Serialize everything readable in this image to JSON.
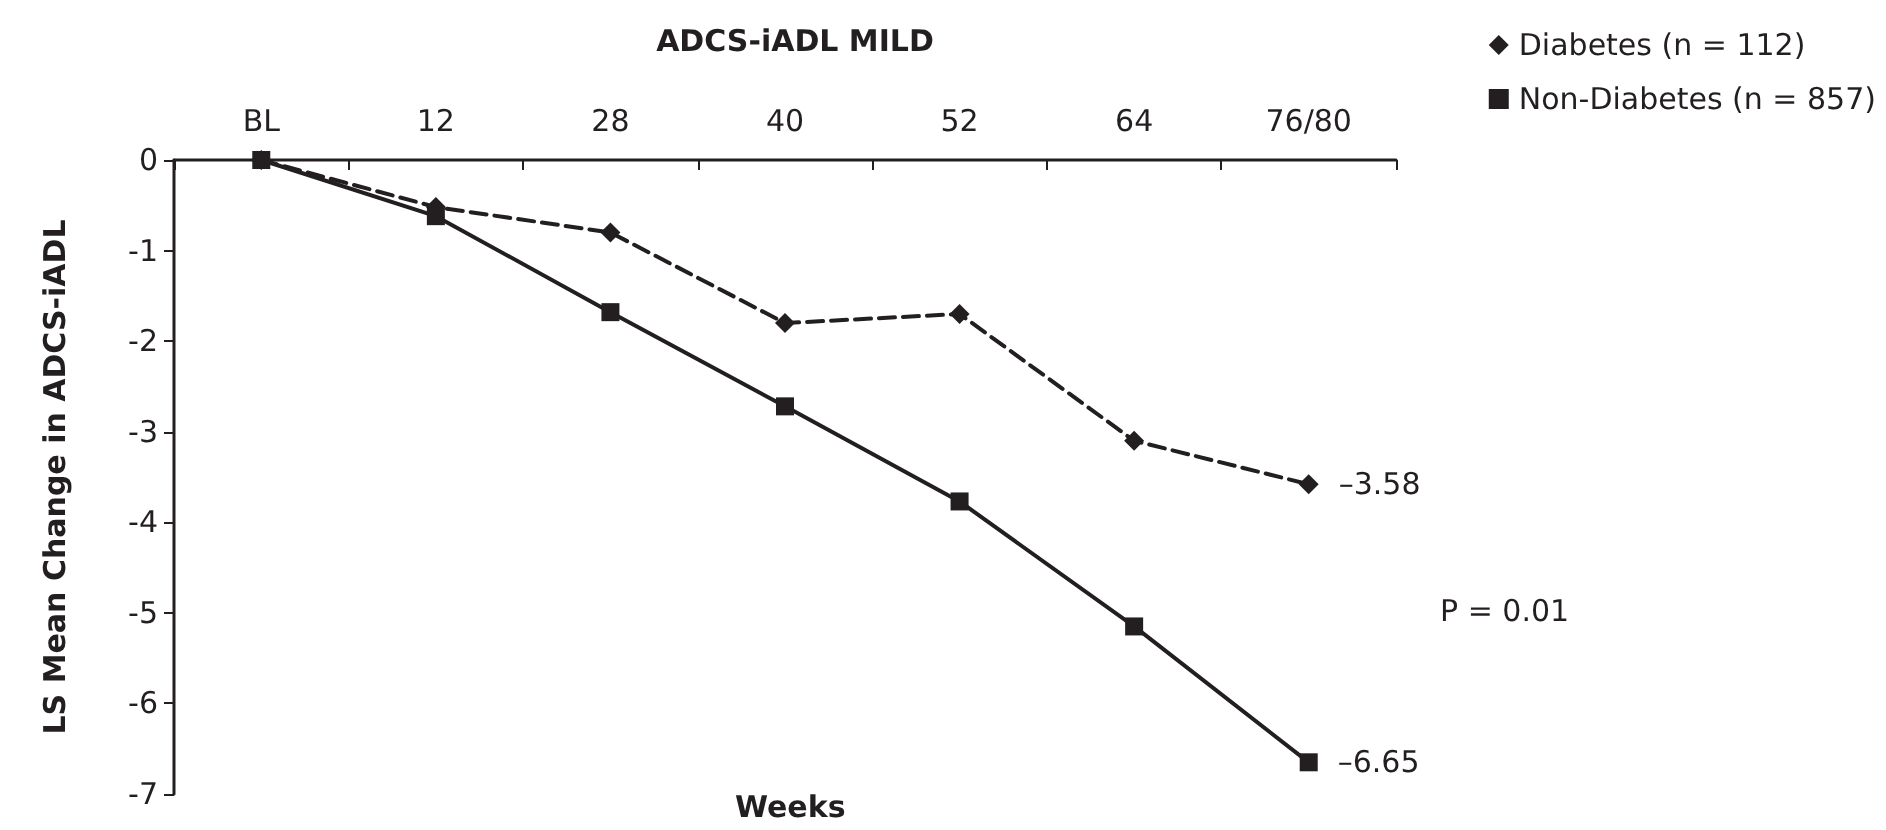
{
  "chart_data": {
    "type": "line",
    "title": "ADCS-iADL MILD",
    "xlabel": "Weeks",
    "ylabel": "LS Mean Change in ADCS-iADL",
    "categories": [
      "BL",
      "12",
      "28",
      "40",
      "52",
      "64",
      "76/80"
    ],
    "series": [
      {
        "name": "Diabetes (n = 112)",
        "color": "#231f20",
        "marker": "diamond",
        "line_style": "dashed",
        "values": [
          0,
          -0.52,
          -0.8,
          -1.8,
          -1.7,
          -3.1,
          -3.58
        ],
        "value_labels": [
          null,
          null,
          null,
          null,
          null,
          null,
          "–3.58"
        ]
      },
      {
        "name": "Non-Diabetes (n = 857)",
        "color": "#231f20",
        "marker": "square",
        "line_style": "solid",
        "values": [
          0,
          -0.62,
          -1.68,
          -2.72,
          -3.77,
          -5.15,
          -6.65
        ],
        "value_labels": [
          null,
          null,
          null,
          null,
          null,
          null,
          "–6.65"
        ]
      }
    ],
    "ylim": [
      -7,
      0
    ],
    "yticks": [
      -7,
      -6,
      -5,
      -4,
      -3,
      -2,
      -1,
      0
    ],
    "grid": false,
    "legend": "top right",
    "annotations": [
      "P = 0.01"
    ]
  }
}
